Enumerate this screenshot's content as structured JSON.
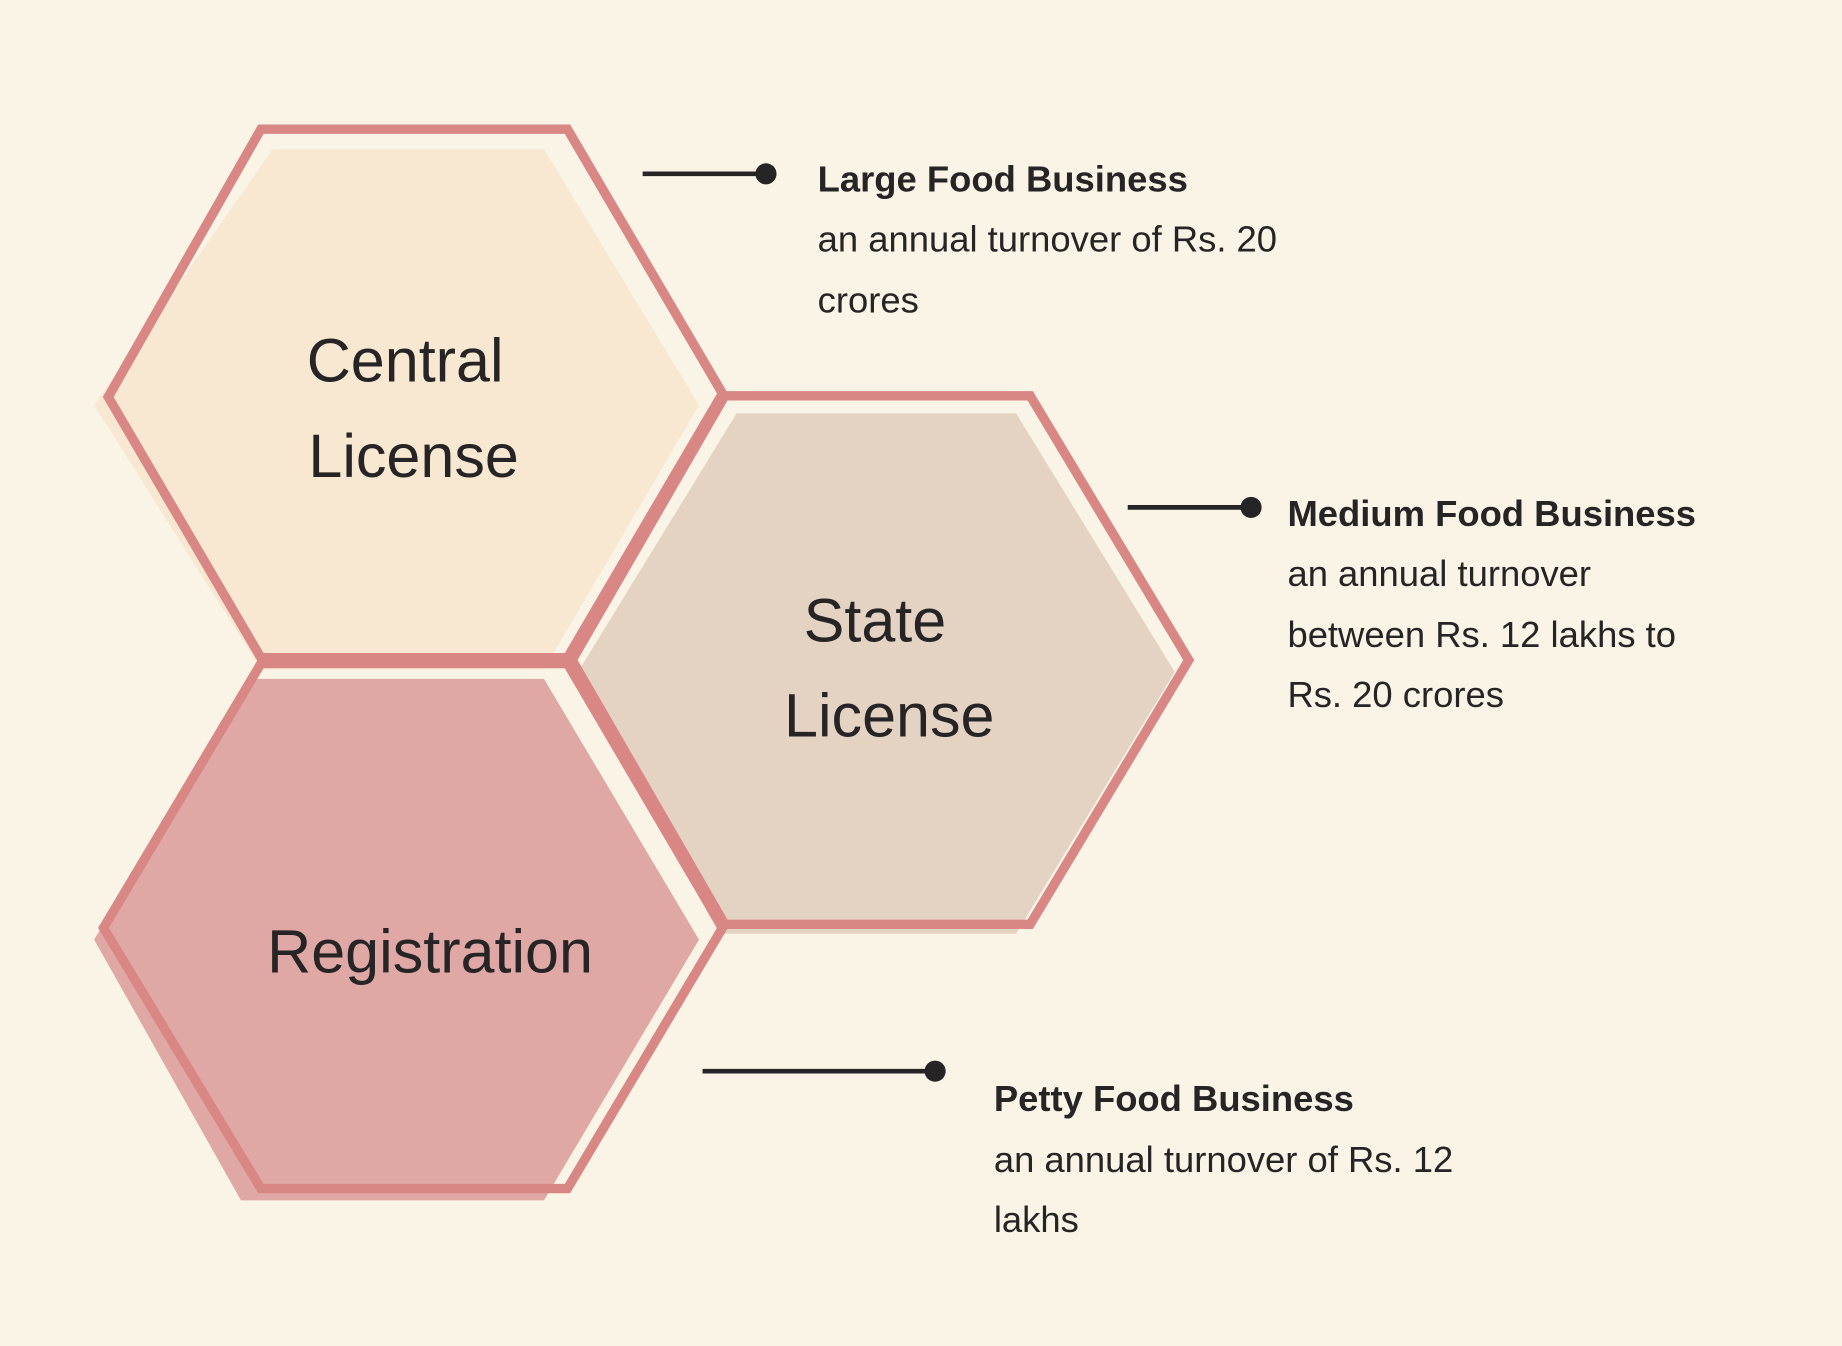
{
  "colors": {
    "background": "#f9f4e6",
    "outline": "#d98785",
    "central_fill": "#f8e8d2",
    "state_fill": "#e4d3c2",
    "registration_fill": "#dfa8a5",
    "text": "#262424"
  },
  "hexagons": [
    {
      "lines": [
        "Central",
        "License"
      ]
    },
    {
      "lines": [
        "State",
        "License"
      ]
    },
    {
      "lines": [
        "Registration"
      ]
    }
  ],
  "callouts": [
    {
      "title": "Large Food Business",
      "lines": [
        "an annual turnover of Rs. 20",
        "crores"
      ]
    },
    {
      "title": "Medium Food Business",
      "lines": [
        "an annual turnover",
        "between Rs. 12 lakhs to",
        "Rs. 20 crores"
      ]
    },
    {
      "title": "Petty Food Business",
      "lines": [
        "an annual turnover of Rs. 12",
        "lakhs"
      ]
    }
  ]
}
